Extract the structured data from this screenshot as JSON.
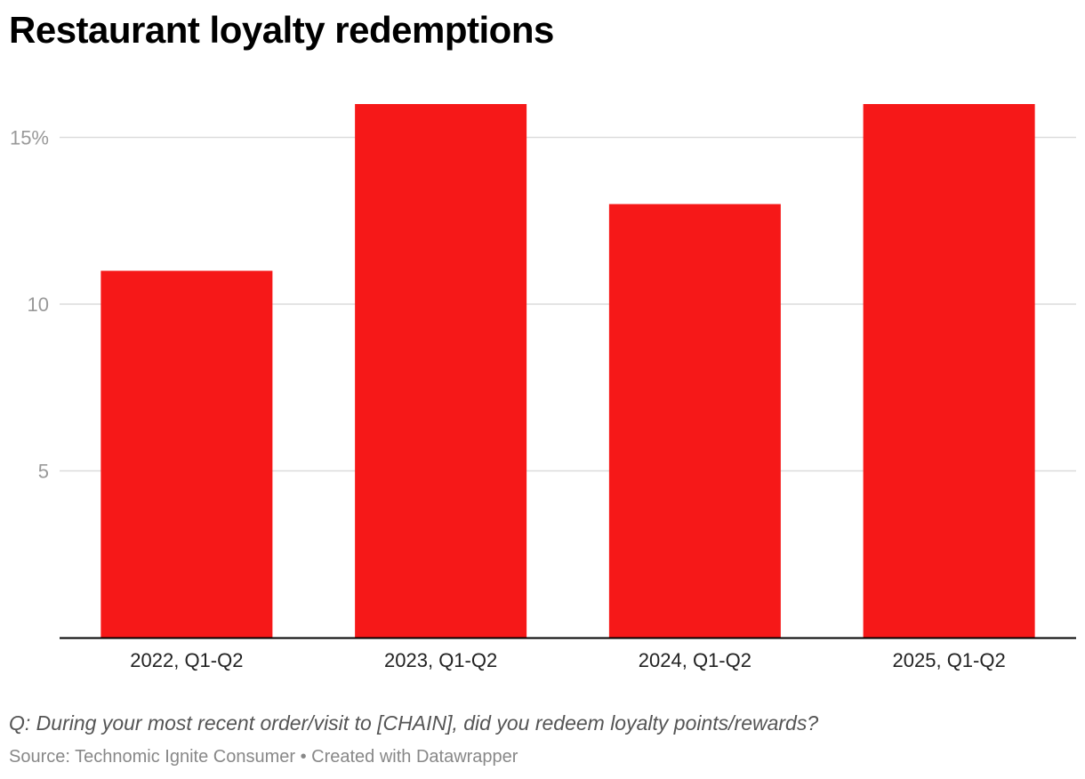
{
  "title": "Restaurant loyalty redemptions",
  "notes": "Q: During your most recent order/visit to [CHAIN], did you redeem loyalty points/rewards?",
  "source": "Source: Technomic Ignite Consumer • Created with Datawrapper",
  "chart_data": {
    "type": "bar",
    "title": "Restaurant loyalty redemptions",
    "categories": [
      "2022, Q1-Q2",
      "2023, Q1-Q2",
      "2024, Q1-Q2",
      "2025, Q1-Q2"
    ],
    "values": [
      11,
      16,
      13,
      16
    ],
    "ylim": [
      0,
      16
    ],
    "yticks": [
      5,
      10,
      15
    ],
    "ytick_labels": [
      "5",
      "10",
      "15%"
    ],
    "xlabel": "",
    "ylabel": "",
    "grid": true,
    "bar_color": "#f61818"
  }
}
